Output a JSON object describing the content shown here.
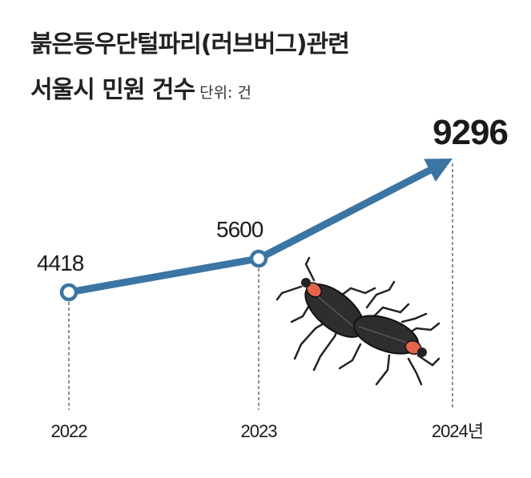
{
  "title_line1": "붉은등우단털파리(러브버그)관련",
  "title_line2": "서울시 민원 건수",
  "unit": "단위: 건",
  "chart_data": {
    "type": "line",
    "x": [
      "2022",
      "2023",
      "2024년"
    ],
    "values": [
      4418,
      5600,
      9296
    ],
    "value_labels": [
      "4418",
      "5600",
      "9296"
    ],
    "colors": {
      "line": "#3b75a3",
      "marker_fill": "#ffffff",
      "guide": "#555555"
    }
  }
}
